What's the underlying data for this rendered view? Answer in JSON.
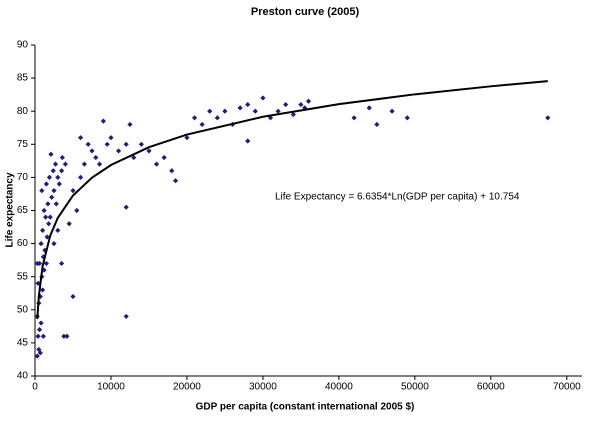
{
  "chart_data": {
    "type": "scatter",
    "title": "Preston curve (2005)",
    "x_label": "GDP per capita (constant international 2005 $)",
    "y_label": "Life expectancy",
    "annotation": "Life Expectancy = 6.6354*Ln(GDP per capita) + 10.754",
    "xlim": [
      0,
      72000
    ],
    "ylim": [
      40,
      90
    ],
    "xticks": [
      0,
      10000,
      20000,
      30000,
      40000,
      50000,
      60000,
      70000
    ],
    "yticks": [
      40,
      45,
      50,
      55,
      60,
      65,
      70,
      75,
      80,
      85,
      90
    ],
    "grid": false,
    "series": [
      {
        "color": "#1f1f7a",
        "x": [
          300,
          500,
          700,
          400,
          600,
          300,
          800,
          500,
          700,
          1000,
          400,
          900,
          1200,
          600,
          1500,
          300,
          1100,
          1300,
          800,
          1600,
          1000,
          1800,
          1400,
          2000,
          1200,
          1700,
          2200,
          900,
          1500,
          2500,
          1900,
          3000,
          2400,
          2100,
          2700,
          3500,
          3200,
          4000,
          3600,
          2800,
          3000,
          1100,
          3800,
          4200,
          5000,
          4500,
          3500,
          2500,
          5500,
          5000,
          6000,
          6500,
          7000,
          6000,
          7500,
          8000,
          8500,
          9000,
          9500,
          10000,
          11000,
          12000,
          12500,
          13000,
          14000,
          15000,
          16000,
          17000,
          18000,
          18500,
          12000,
          12000,
          20000,
          21000,
          22000,
          23000,
          24000,
          25000,
          26000,
          27000,
          28000,
          28000,
          29000,
          30000,
          31000,
          32000,
          33000,
          34000,
          35000,
          36000,
          35500,
          42000,
          45000,
          47000,
          49000,
          44000,
          67500
        ],
        "values": [
          43,
          44,
          43.5,
          46,
          47,
          49,
          48,
          51,
          52,
          53,
          54,
          55,
          56,
          57,
          57,
          57,
          58,
          59,
          60,
          61,
          62,
          63,
          64,
          64,
          65,
          66,
          67,
          68,
          69,
          68,
          70,
          70,
          71,
          73.5,
          72,
          71,
          69,
          72,
          73,
          66,
          62,
          46,
          46,
          46,
          52,
          63,
          57,
          60,
          65,
          68,
          70,
          72,
          75,
          76,
          74,
          73,
          72,
          78.5,
          75,
          76,
          74,
          75,
          78,
          73,
          75,
          74,
          72,
          73,
          71,
          69.5,
          65.5,
          49,
          76,
          79,
          78,
          80,
          79,
          80,
          78,
          80.5,
          81,
          75.5,
          80,
          82,
          79,
          80,
          81,
          79.5,
          81,
          81.5,
          80.5,
          79,
          78,
          80,
          79,
          80.5,
          79
        ]
      },
      {
        "type": "line",
        "color": "#000000",
        "x": [
          300,
          500,
          1000,
          2000,
          3000,
          5000,
          7500,
          10000,
          15000,
          20000,
          30000,
          40000,
          50000,
          60000,
          67500
        ],
        "values": [
          48.6,
          51.99,
          56.59,
          61.19,
          63.88,
          67.27,
          69.96,
          71.87,
          74.56,
          76.47,
          79.16,
          81.07,
          82.55,
          83.76,
          84.54
        ]
      }
    ]
  }
}
